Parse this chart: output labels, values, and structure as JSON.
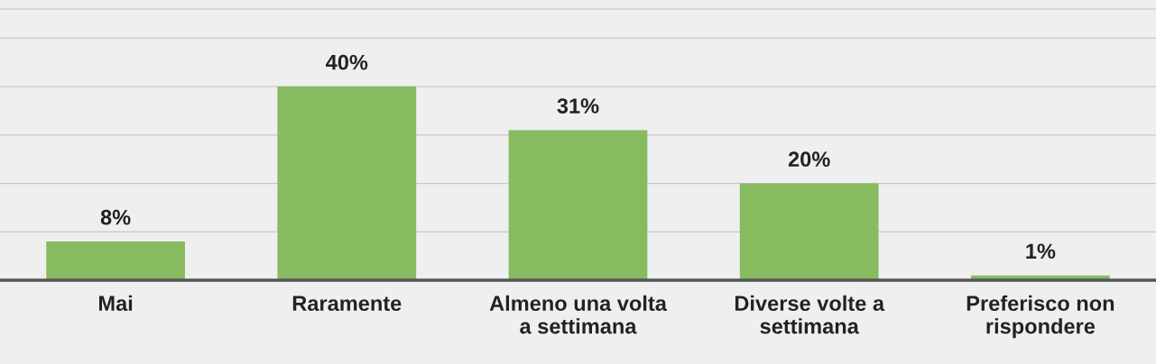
{
  "chart_data": {
    "type": "bar",
    "categories": [
      "Mai",
      "Raramente",
      "Almeno una volta\na settimana",
      "Diverse volte a\nsettimana",
      "Preferisco non\nrispondere"
    ],
    "values": [
      8,
      40,
      31,
      20,
      1
    ],
    "value_labels": [
      "8%",
      "40%",
      "31%",
      "20%",
      "1%"
    ],
    "color": "#86bb5f",
    "ylim": [
      0,
      56
    ],
    "yticks": [
      {
        "value": 0,
        "label": null
      },
      {
        "value": 10,
        "label": null
      },
      {
        "value": 20,
        "label": null
      },
      {
        "value": 30,
        "label": null
      },
      {
        "value": 40,
        "label": null
      },
      {
        "value": 50,
        "label": null
      }
    ],
    "grid": "y",
    "tick_labels": "x"
  }
}
